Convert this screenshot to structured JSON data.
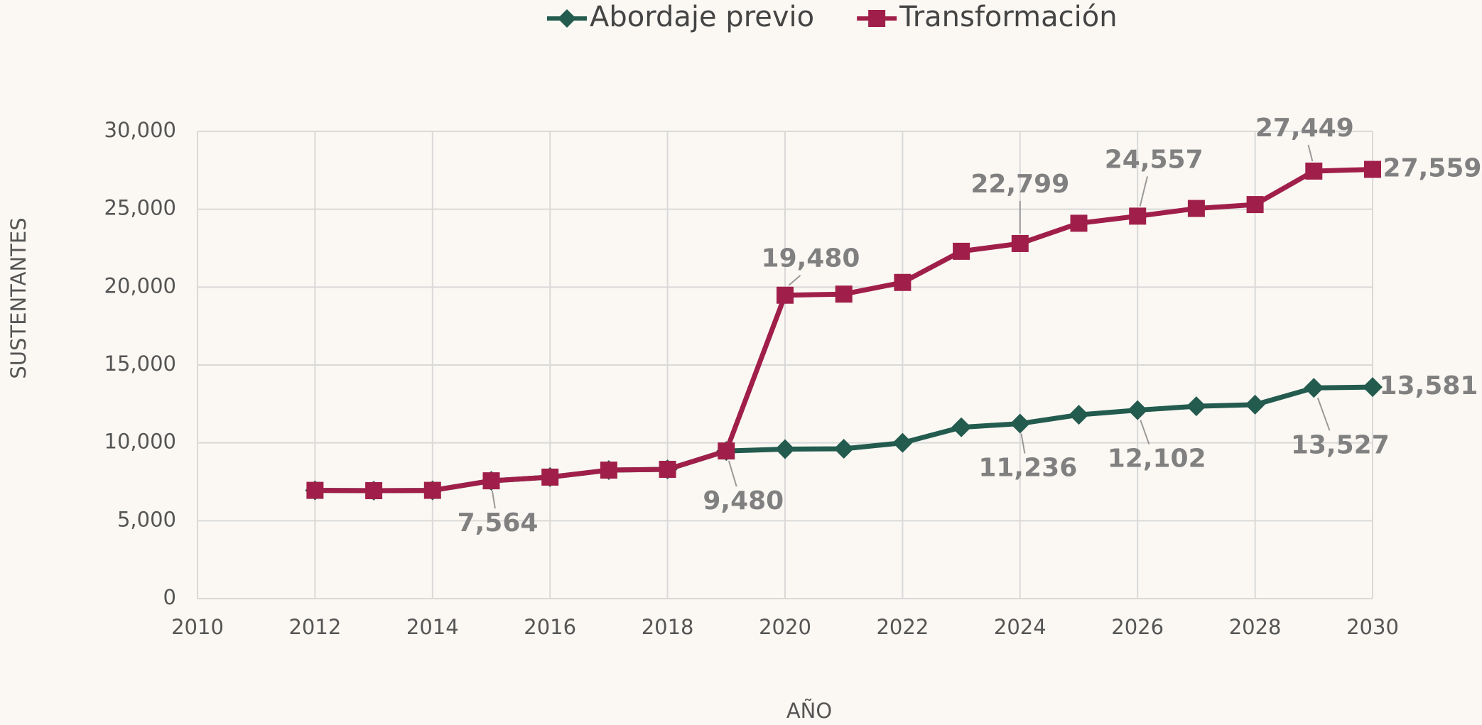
{
  "chart_data": {
    "type": "line",
    "x_label": "AÑO",
    "y_label": "SUSTENTANTES",
    "x": [
      2012,
      2013,
      2014,
      2015,
      2016,
      2017,
      2018,
      2019,
      2020,
      2021,
      2022,
      2023,
      2024,
      2025,
      2026,
      2027,
      2028,
      2029,
      2030
    ],
    "series": [
      {
        "name": "Abordaje previo",
        "color": "#235b4e",
        "marker": "diamond",
        "values": [
          6950,
          6930,
          6950,
          7564,
          7800,
          8250,
          8300,
          9480,
          9600,
          9620,
          10000,
          11000,
          11236,
          11800,
          12102,
          12350,
          12450,
          13527,
          13581
        ],
        "value_labels": [
          null,
          null,
          null,
          null,
          null,
          null,
          null,
          "9,480",
          null,
          null,
          null,
          null,
          "11,236",
          null,
          "12,102",
          null,
          null,
          "13,527",
          "13,581"
        ]
      },
      {
        "name": "Transformación",
        "color": "#a01f4a",
        "marker": "square",
        "values": [
          6950,
          6930,
          6950,
          7564,
          7800,
          8250,
          8300,
          9480,
          19480,
          19550,
          20300,
          22300,
          22799,
          24100,
          24557,
          25050,
          25300,
          27449,
          27559
        ],
        "value_labels": [
          null,
          null,
          null,
          "7,564",
          null,
          null,
          null,
          null,
          "19,480",
          null,
          null,
          null,
          "22,799",
          null,
          "24,557",
          null,
          null,
          "27,449",
          "27,559"
        ]
      }
    ],
    "xlim": [
      2010,
      2030
    ],
    "xticks": [
      2010,
      2012,
      2014,
      2016,
      2018,
      2020,
      2022,
      2024,
      2026,
      2028,
      2030
    ],
    "ylim": [
      0,
      30000
    ],
    "yticks": [
      0,
      {
        "value": 5000,
        "label": "5,000"
      },
      {
        "value": 10000,
        "label": "10,000"
      },
      {
        "value": 15000,
        "label": "15,000"
      },
      {
        "value": 20000,
        "label": "20,000"
      },
      {
        "value": 25000,
        "label": "25,000"
      },
      {
        "value": 30000,
        "label": "30,000"
      }
    ],
    "grid": true,
    "legend": "top"
  }
}
